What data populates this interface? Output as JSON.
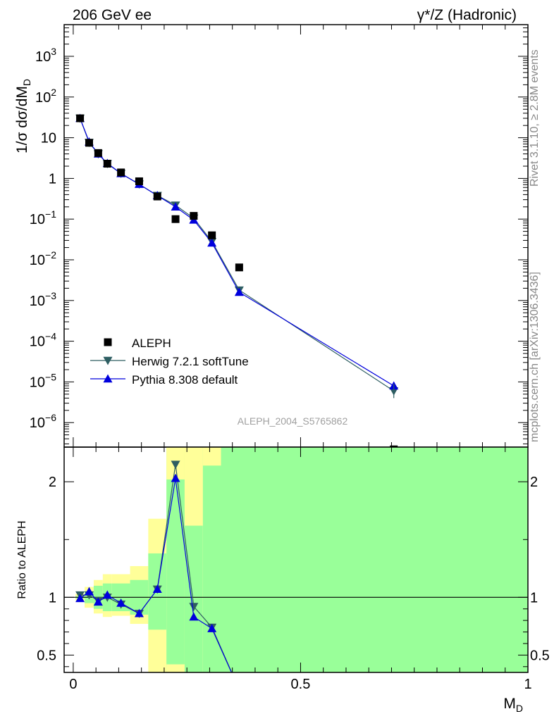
{
  "chart_data": {
    "type": "scatter",
    "title_left": "206 GeV ee",
    "title_right": "γ*/Z (Hadronic)",
    "ylabel": "1/σ  dσ/dM",
    "ylabel_sub": "D",
    "xlabel": "M",
    "xlabel_sub": "D",
    "analysis_tag": "ALEPH_2004_S5765862",
    "side_text_top": "Rivet 3.1.10, ≥ 2.8M events",
    "side_text_bottom": "mcplots.cern.ch [arXiv:1306.3436]",
    "xlim": [
      -0.02,
      1.0
    ],
    "xticks": [
      0,
      0.5,
      1
    ],
    "xtick_labels": [
      "0",
      "0.5",
      "1"
    ],
    "main": {
      "yscale": "log",
      "ylim": [
        2.5e-07,
        6000
      ],
      "yticks": [
        {
          "value": 1000.0,
          "base": "10",
          "exp": "3"
        },
        {
          "value": 100.0,
          "base": "10",
          "exp": "2"
        },
        {
          "value": 10,
          "base": "10",
          "exp": ""
        },
        {
          "value": 1,
          "base": "1",
          "exp": ""
        },
        {
          "value": 0.1,
          "base": "10",
          "exp": "−1"
        },
        {
          "value": 0.01,
          "base": "10",
          "exp": "−2"
        },
        {
          "value": 0.001,
          "base": "10",
          "exp": "−3"
        },
        {
          "value": 0.0001,
          "base": "10",
          "exp": "−4"
        },
        {
          "value": 1e-05,
          "base": "10",
          "exp": "−5"
        },
        {
          "value": 1e-06,
          "base": "10",
          "exp": "−6"
        }
      ],
      "legend_placement": "bottom-left",
      "series": [
        {
          "name": "ALEPH",
          "marker": "square",
          "color": "#000000",
          "x": [
            0.015,
            0.035,
            0.055,
            0.075,
            0.105,
            0.145,
            0.185,
            0.225,
            0.265,
            0.305,
            0.365,
            0.705
          ],
          "y": [
            30,
            7.5,
            4.2,
            2.3,
            1.4,
            0.85,
            0.36,
            0.1,
            0.12,
            0.04,
            0.0065,
            2.2e-07
          ]
        },
        {
          "name": "Herwig 7.2.1 softTune",
          "marker": "triangle-down",
          "color": "#2e5e62",
          "x": [
            0.015,
            0.035,
            0.055,
            0.075,
            0.105,
            0.145,
            0.185,
            0.225,
            0.265,
            0.305,
            0.365,
            0.705
          ],
          "y": [
            30,
            7.6,
            4.0,
            2.3,
            1.32,
            0.72,
            0.38,
            0.22,
            0.105,
            0.028,
            0.0018,
            6e-06
          ]
        },
        {
          "name": "Pythia 8.308 default",
          "marker": "triangle-up",
          "color": "#0000dd",
          "x": [
            0.015,
            0.035,
            0.055,
            0.075,
            0.105,
            0.145,
            0.185,
            0.225,
            0.265,
            0.305,
            0.365,
            0.705
          ],
          "y": [
            30,
            7.9,
            4.0,
            2.35,
            1.32,
            0.72,
            0.38,
            0.2,
            0.095,
            0.026,
            0.0016,
            8e-06
          ]
        }
      ]
    },
    "ratio": {
      "ylabel": "Ratio to ALEPH",
      "ylim": [
        0.35,
        2.3
      ],
      "yticks": [
        0.5,
        1,
        2
      ],
      "ytick_labels": [
        "0.5",
        "1",
        "2"
      ],
      "reference_line": 1,
      "band_colors": {
        "inner": "#99ff99",
        "outer": "#ffff99"
      },
      "bands": [
        {
          "x0": 0.005,
          "x1": 0.025,
          "inner": [
            0.99,
            1.01
          ],
          "outer": [
            0.97,
            1.03
          ]
        },
        {
          "x0": 0.025,
          "x1": 0.045,
          "inner": [
            0.95,
            1.05
          ],
          "outer": [
            0.91,
            1.09
          ]
        },
        {
          "x0": 0.045,
          "x1": 0.065,
          "inner": [
            0.9,
            1.1
          ],
          "outer": [
            0.86,
            1.15
          ]
        },
        {
          "x0": 0.065,
          "x1": 0.085,
          "inner": [
            0.88,
            1.12
          ],
          "outer": [
            0.83,
            1.2
          ]
        },
        {
          "x0": 0.085,
          "x1": 0.125,
          "inner": [
            0.88,
            1.12
          ],
          "outer": [
            0.84,
            1.2
          ]
        },
        {
          "x0": 0.125,
          "x1": 0.165,
          "inner": [
            0.85,
            1.15
          ],
          "outer": [
            0.77,
            1.27
          ]
        },
        {
          "x0": 0.165,
          "x1": 0.205,
          "inner": [
            0.72,
            1.38
          ],
          "outer": [
            0.35,
            1.68
          ]
        },
        {
          "x0": 0.205,
          "x1": 0.245,
          "inner": [
            0.35,
            2.3
          ],
          "outer": [
            0.35,
            2.3
          ]
        },
        {
          "x0": 0.245,
          "x1": 0.285,
          "inner": [
            0.35,
            2.3
          ],
          "outer": [
            0.35,
            2.3
          ]
        },
        {
          "x0": 0.285,
          "x1": 1.0,
          "inner": [
            0.35,
            2.3
          ],
          "outer": [
            0.35,
            2.3
          ]
        }
      ],
      "series": [
        {
          "name": "Herwig 7.2.1 softTune",
          "marker": "triangle-down",
          "color": "#2e5e62",
          "x": [
            0.015,
            0.035,
            0.055,
            0.075,
            0.105,
            0.145,
            0.185,
            0.225,
            0.265,
            0.305,
            0.365
          ],
          "y": [
            1.02,
            1.02,
            0.97,
            1.0,
            0.94,
            0.86,
            1.07,
            2.15,
            0.92,
            0.74,
            0.2
          ]
        },
        {
          "name": "Pythia 8.308 default",
          "marker": "triangle-up",
          "color": "#0000dd",
          "x": [
            0.015,
            0.035,
            0.055,
            0.075,
            0.105,
            0.145,
            0.185,
            0.225,
            0.265,
            0.305,
            0.365
          ],
          "y": [
            0.99,
            1.05,
            0.96,
            1.02,
            0.95,
            0.86,
            1.07,
            2.03,
            0.83,
            0.73,
            0.2
          ]
        }
      ]
    }
  }
}
